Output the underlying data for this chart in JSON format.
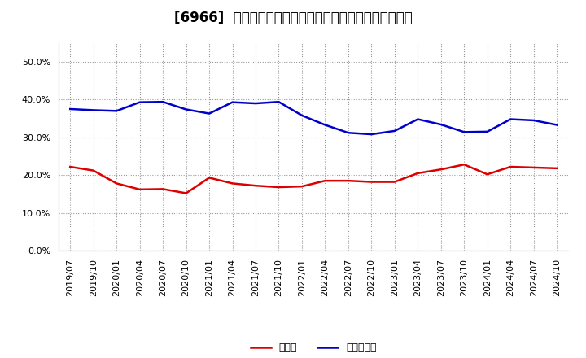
{
  "title": "[6966]  現顔金、有利子負債の総資産に対する比率の推移",
  "x_labels": [
    "2019/07",
    "2019/10",
    "2020/01",
    "2020/04",
    "2020/07",
    "2020/10",
    "2021/01",
    "2021/04",
    "2021/07",
    "2021/10",
    "2022/01",
    "2022/04",
    "2022/07",
    "2022/10",
    "2023/01",
    "2023/04",
    "2023/07",
    "2023/10",
    "2024/01",
    "2024/04",
    "2024/07",
    "2024/10"
  ],
  "cash": [
    0.222,
    0.212,
    0.178,
    0.162,
    0.163,
    0.152,
    0.193,
    0.178,
    0.172,
    0.168,
    0.17,
    0.185,
    0.185,
    0.182,
    0.182,
    0.205,
    0.215,
    0.228,
    0.202,
    0.222,
    0.22,
    0.218
  ],
  "debt": [
    0.375,
    0.372,
    0.37,
    0.393,
    0.394,
    0.374,
    0.363,
    0.393,
    0.39,
    0.394,
    0.358,
    0.333,
    0.312,
    0.308,
    0.317,
    0.348,
    0.334,
    0.314,
    0.315,
    0.348,
    0.345,
    0.333
  ],
  "cash_color": "#dd0000",
  "debt_color": "#0000cc",
  "background_color": "#ffffff",
  "plot_bg_color": "#ffffff",
  "grid_color": "#999999",
  "ylim": [
    0.0,
    0.55
  ],
  "yticks": [
    0.0,
    0.1,
    0.2,
    0.3,
    0.4,
    0.5
  ],
  "legend_cash": "現顔金",
  "legend_debt": "有利子負債",
  "line_width": 1.8,
  "title_fontsize": 12,
  "tick_fontsize": 8,
  "legend_fontsize": 9
}
